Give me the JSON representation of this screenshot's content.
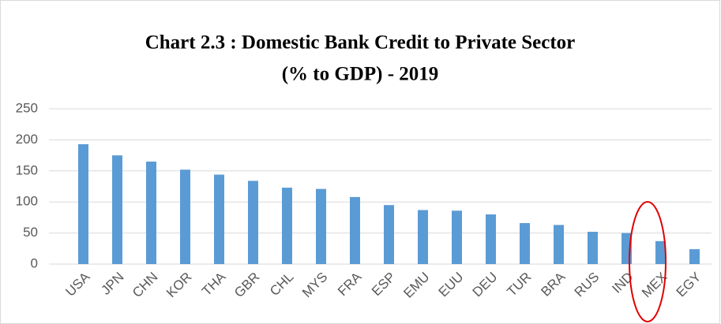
{
  "chart_data": {
    "type": "bar",
    "title": [
      "Chart 2.3 : Domestic Bank Credit to Private Sector",
      "(% to GDP) - 2019"
    ],
    "categories": [
      "USA",
      "JPN",
      "CHN",
      "KOR",
      "THA",
      "GBR",
      "CHL",
      "MYS",
      "FRA",
      "ESP",
      "EMU",
      "EUU",
      "DEU",
      "TUR",
      "BRA",
      "RUS",
      "IND",
      "MEX",
      "EGY"
    ],
    "values": [
      193,
      175,
      165,
      152,
      144,
      134,
      123,
      121,
      108,
      95,
      87,
      86,
      80,
      66,
      63,
      52,
      50,
      37,
      24
    ],
    "color": "#5b9bd5",
    "ylim": [
      0,
      250
    ],
    "yticks": [
      0,
      50,
      100,
      150,
      200,
      250
    ],
    "grid": true
  }
}
